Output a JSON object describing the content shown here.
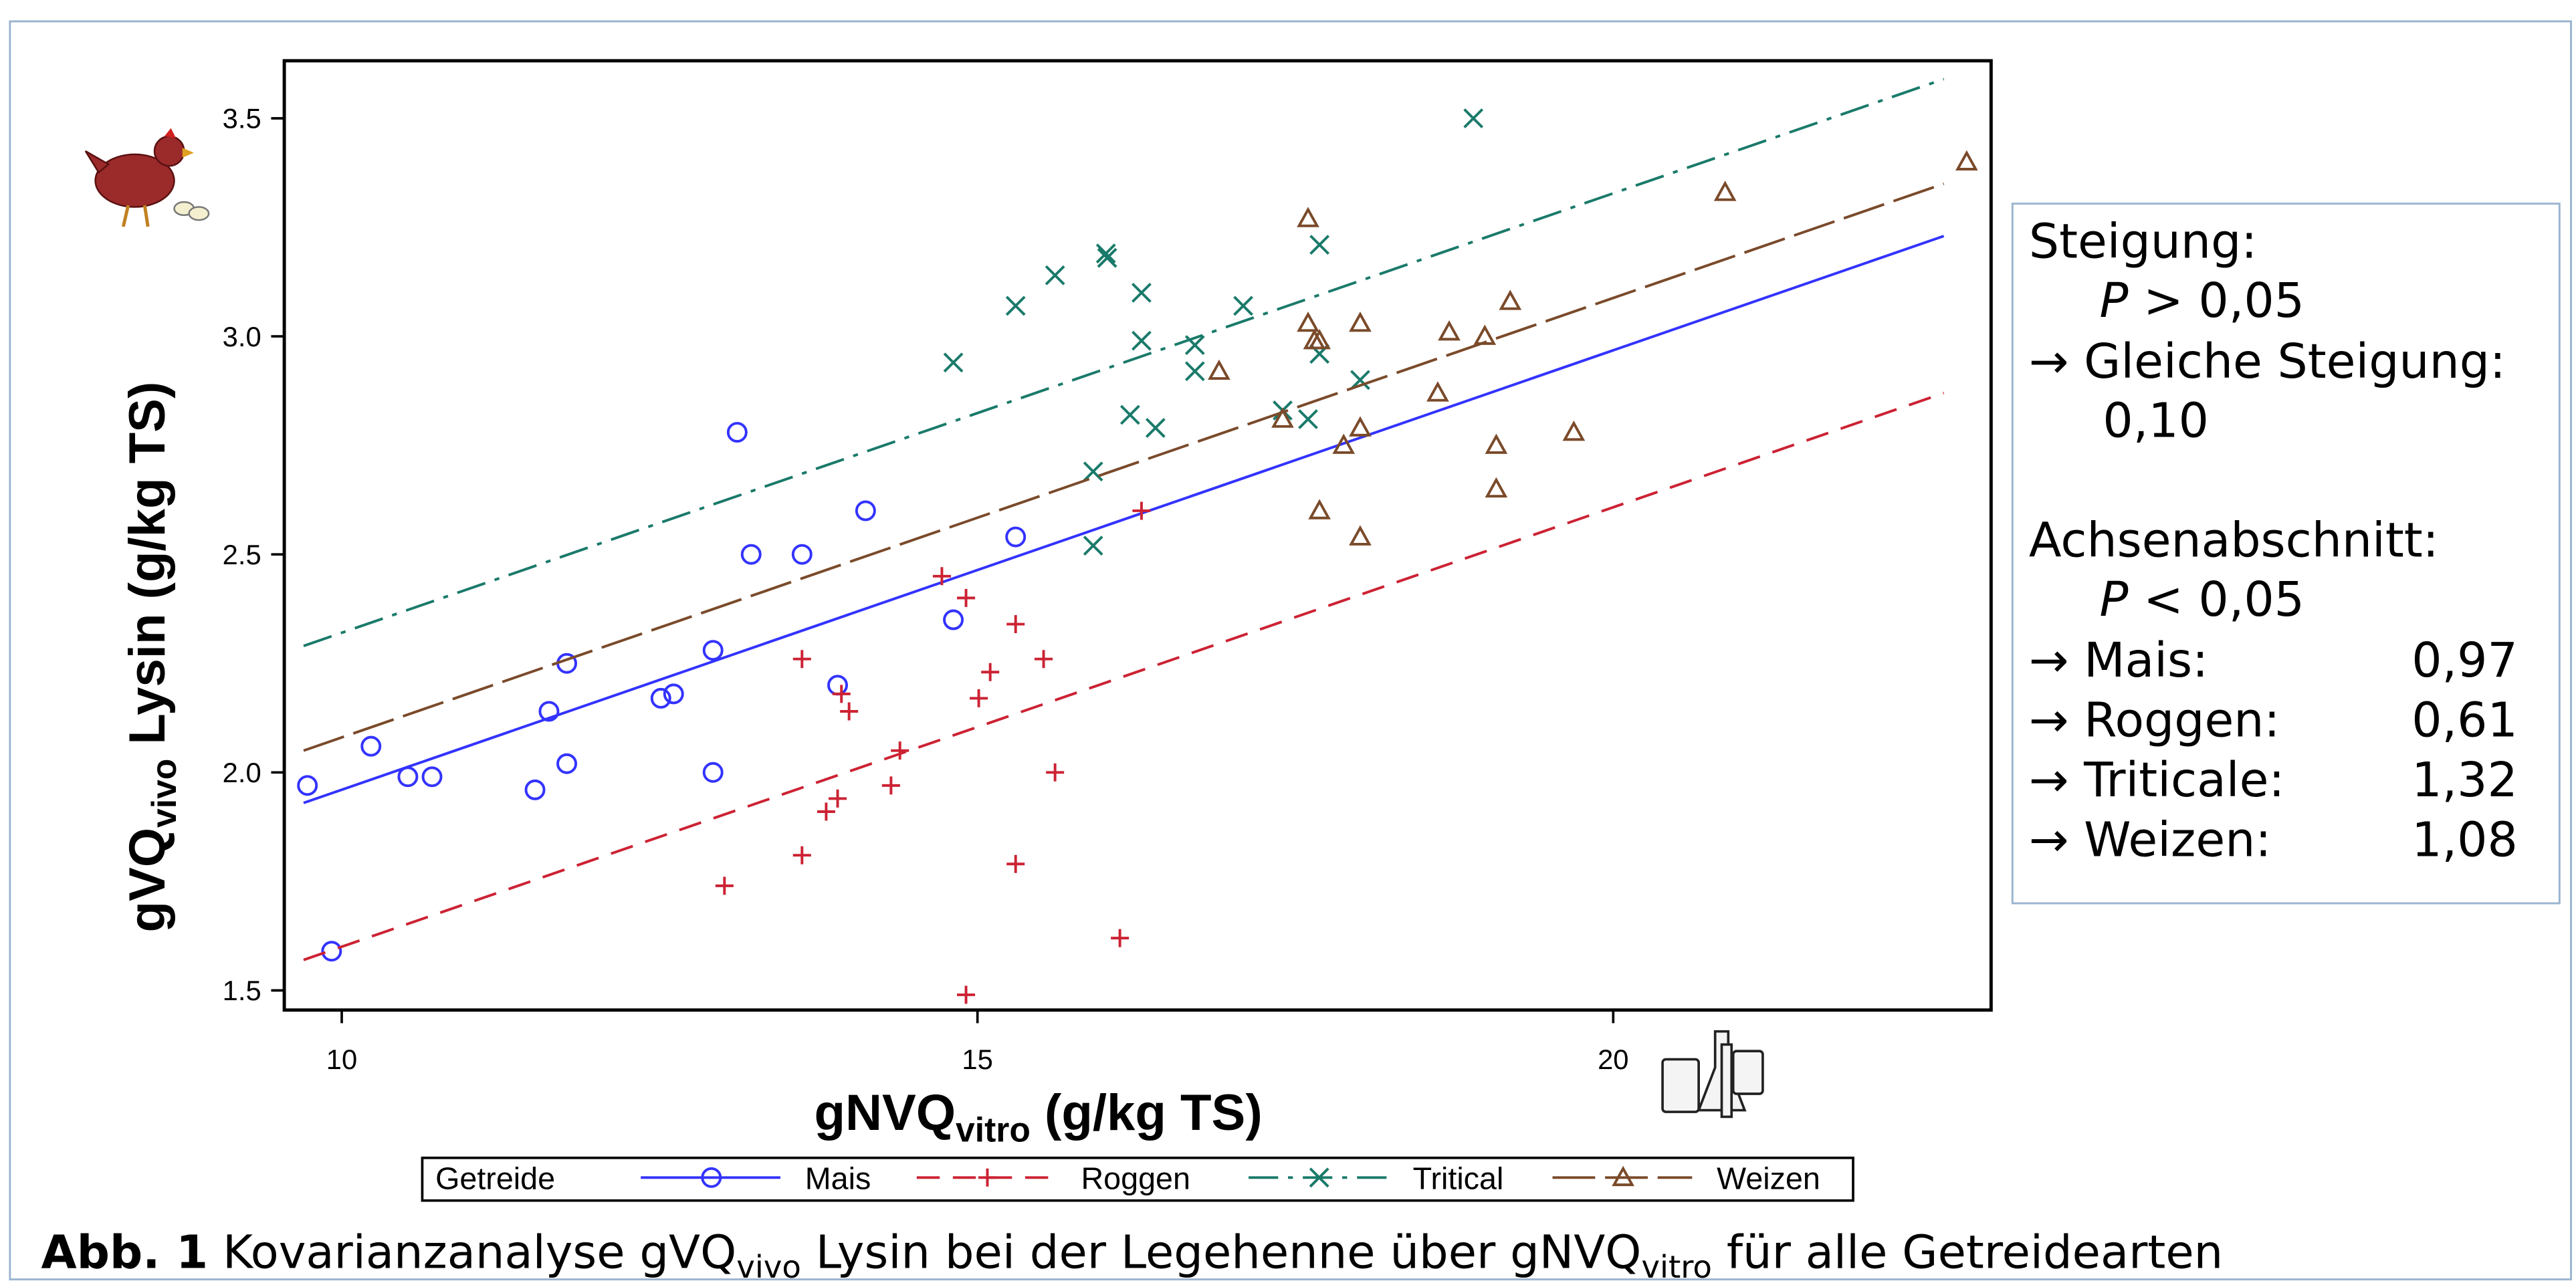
{
  "chart_data": {
    "type": "scatter",
    "ylabel": {
      "main": "gVQ",
      "sub": "vivo",
      "rest": " Lysin (g/kg TS)"
    },
    "xlabel": {
      "main": "gNVQ",
      "sub": "vitro",
      "rest": " (g/kg TS)"
    },
    "xlim": [
      9.548,
      22.972
    ],
    "ylim": [
      1.455,
      3.632
    ],
    "xticks": [
      10,
      15,
      20
    ],
    "yticks": [
      1.5,
      {
        "value": 2,
        "label": "2.0"
      },
      2.5,
      {
        "value": 3,
        "label": "3.0"
      },
      3.5
    ],
    "legend_title": "Getreide",
    "series": [
      {
        "name": "Mais",
        "color": "#3333ff",
        "marker": "circle",
        "line_style": "solid",
        "x": [
          9.73,
          9.92,
          10.23,
          10.52,
          10.71,
          11.52,
          11.63,
          11.77,
          11.77,
          12.51,
          12.61,
          12.92,
          12.92,
          13.11,
          13.22,
          13.62,
          13.9,
          14.12,
          14.81,
          15.3
        ],
        "values": [
          1.97,
          1.59,
          2.06,
          1.99,
          1.99,
          1.96,
          2.14,
          2.25,
          2.02,
          2.17,
          2.18,
          2.28,
          2.0,
          2.78,
          2.5,
          2.5,
          2.2,
          2.6,
          2.35,
          2.54
        ],
        "fit": {
          "x": [
            9.7,
            22.6
          ],
          "y": [
            1.93,
            3.23
          ]
        }
      },
      {
        "name": "Roggen",
        "color": "#cc2233",
        "marker": "plus",
        "line_style": "dashed",
        "x": [
          13.01,
          13.62,
          13.62,
          13.81,
          13.9,
          13.99,
          13.93,
          14.32,
          14.39,
          14.72,
          14.91,
          15.01,
          15.1,
          15.3,
          15.3,
          14.91,
          15.52,
          15.61,
          16.12,
          16.29
        ],
        "values": [
          1.74,
          2.26,
          1.81,
          1.91,
          1.94,
          2.14,
          2.18,
          1.97,
          2.05,
          2.45,
          2.4,
          2.17,
          2.23,
          2.34,
          1.79,
          1.49,
          2.26,
          2.0,
          1.62,
          2.6
        ],
        "fit": {
          "x": [
            9.7,
            22.6
          ],
          "y": [
            1.57,
            2.87
          ]
        }
      },
      {
        "name": "Tritical",
        "color": "#1a7a6a",
        "marker": "x",
        "line_style": "dashdot",
        "x": [
          14.81,
          15.3,
          15.61,
          16.01,
          16.02,
          16.29,
          16.29,
          16.2,
          16.4,
          15.91,
          15.91,
          16.71,
          16.71,
          17.09,
          17.4,
          17.6,
          17.69,
          17.69,
          18.01,
          18.9
        ],
        "values": [
          2.94,
          3.07,
          3.14,
          3.19,
          3.18,
          3.1,
          2.99,
          2.82,
          2.79,
          2.69,
          2.52,
          2.98,
          2.92,
          3.07,
          2.83,
          2.81,
          3.21,
          2.96,
          2.9,
          3.5
        ],
        "fit": {
          "x": [
            9.7,
            22.6
          ],
          "y": [
            2.29,
            3.59
          ]
        }
      },
      {
        "name": "Weizen",
        "color": "#7a4a2a",
        "marker": "triangle",
        "line_style": "longdash",
        "x": [
          16.9,
          17.4,
          17.6,
          17.6,
          17.65,
          17.69,
          17.69,
          17.88,
          18.01,
          18.01,
          18.01,
          18.62,
          18.71,
          18.99,
          19.08,
          19.08,
          19.19,
          19.69,
          20.88,
          22.78
        ],
        "values": [
          2.92,
          2.81,
          3.27,
          3.03,
          2.99,
          2.99,
          2.6,
          2.75,
          2.79,
          3.03,
          2.54,
          2.87,
          3.01,
          3.0,
          2.75,
          2.65,
          3.08,
          2.78,
          3.33,
          3.4
        ],
        "fit": {
          "x": [
            9.7,
            22.6
          ],
          "y": [
            2.05,
            3.35
          ]
        }
      }
    ]
  },
  "stats_box": {
    "slope_title": "Steigung:",
    "p_symbol": "P",
    "slope_test": " > 0,05",
    "slope_result": "→ Gleiche Steigung:",
    "slope_value": "0,10",
    "intercept_title": "Achsenabschnitt:",
    "intercept_test": " < 0,05",
    "intercepts": [
      {
        "label": "→ Mais:",
        "value": "0,97"
      },
      {
        "label": "→ Roggen:",
        "value": "0,61"
      },
      {
        "label": "→ Triticale:",
        "value": "1,32"
      },
      {
        "label": "→ Weizen:",
        "value": "1,08"
      }
    ]
  },
  "caption": {
    "bold": "Abb. 1",
    "part1": " Kovarianzanalyse gVQ",
    "sub1": "vivo",
    "part2": " Lysin bei der Legehenne über gNVQ",
    "sub2": "vitro",
    "part3": " für alle Getreidearten"
  }
}
